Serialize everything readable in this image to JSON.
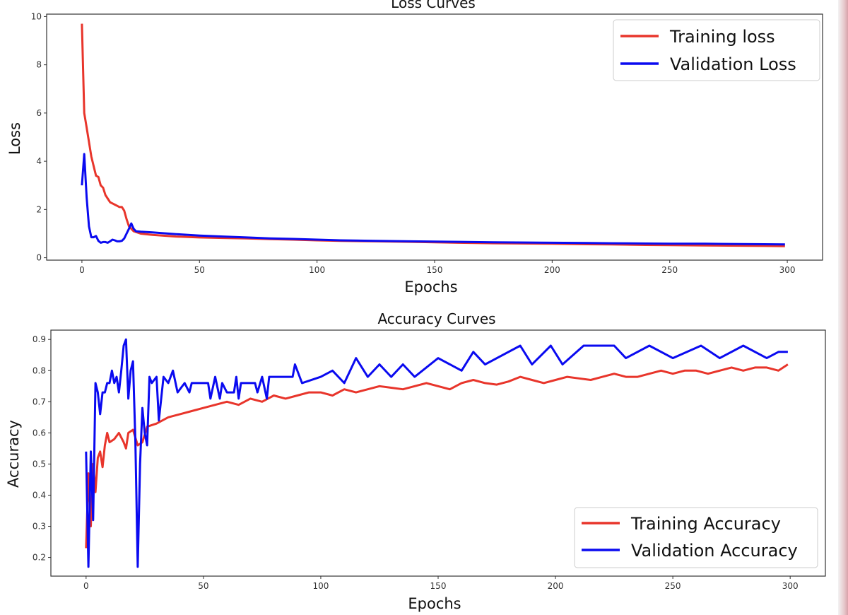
{
  "chart_data": [
    {
      "type": "line",
      "title": "Loss Curves",
      "xlabel": "Epochs",
      "ylabel": "Loss",
      "xlim": [
        -15,
        315
      ],
      "ylim": [
        -0.1,
        10.1
      ],
      "xticks": [
        0,
        50,
        100,
        150,
        200,
        250,
        300
      ],
      "yticks": [
        0,
        2,
        4,
        6,
        8,
        10
      ],
      "legend_position": "top-right",
      "colors": {
        "Training loss": "#e8352b",
        "Validation Loss": "#0a0af0"
      },
      "series": [
        {
          "name": "Training loss",
          "x": [
            0,
            1,
            2,
            3,
            4,
            5,
            6,
            7,
            8,
            9,
            10,
            11,
            12,
            13,
            14,
            15,
            16,
            17,
            18,
            19,
            20,
            22,
            25,
            30,
            40,
            50,
            60,
            70,
            80,
            90,
            100,
            110,
            125,
            140,
            150,
            160,
            175,
            190,
            200,
            215,
            225,
            240,
            250,
            265,
            275,
            290,
            299
          ],
          "y": [
            9.7,
            6.0,
            5.4,
            4.8,
            4.2,
            3.8,
            3.4,
            3.35,
            3.0,
            2.9,
            2.6,
            2.45,
            2.3,
            2.25,
            2.2,
            2.15,
            2.1,
            2.1,
            1.95,
            1.6,
            1.3,
            1.1,
            1.0,
            0.95,
            0.88,
            0.84,
            0.82,
            0.8,
            0.77,
            0.75,
            0.72,
            0.7,
            0.68,
            0.66,
            0.64,
            0.62,
            0.6,
            0.59,
            0.58,
            0.56,
            0.55,
            0.53,
            0.52,
            0.51,
            0.5,
            0.49,
            0.48
          ]
        },
        {
          "name": "Validation Loss",
          "x": [
            0,
            1,
            2,
            3,
            4,
            5,
            6,
            7,
            8,
            9,
            10,
            11,
            12,
            13,
            14,
            15,
            16,
            17,
            18,
            19,
            20,
            21,
            22,
            23,
            25,
            30,
            40,
            50,
            60,
            70,
            80,
            90,
            100,
            110,
            125,
            140,
            150,
            160,
            175,
            190,
            200,
            215,
            225,
            240,
            250,
            265,
            275,
            290,
            299
          ],
          "y": [
            3.0,
            4.3,
            2.5,
            1.3,
            0.85,
            0.85,
            0.9,
            0.7,
            0.62,
            0.65,
            0.65,
            0.62,
            0.68,
            0.75,
            0.72,
            0.68,
            0.68,
            0.7,
            0.8,
            1.0,
            1.2,
            1.42,
            1.2,
            1.1,
            1.08,
            1.05,
            0.98,
            0.92,
            0.88,
            0.84,
            0.8,
            0.78,
            0.75,
            0.72,
            0.7,
            0.68,
            0.67,
            0.66,
            0.64,
            0.63,
            0.62,
            0.61,
            0.6,
            0.59,
            0.58,
            0.58,
            0.57,
            0.56,
            0.55
          ]
        }
      ]
    },
    {
      "type": "line",
      "title": "Accuracy Curves",
      "xlabel": "Epochs",
      "ylabel": "Accuracy",
      "xlim": [
        -15,
        315
      ],
      "ylim": [
        0.14,
        0.93
      ],
      "xticks": [
        0,
        50,
        100,
        150,
        200,
        250,
        300
      ],
      "yticks": [
        0.2,
        0.3,
        0.4,
        0.5,
        0.6,
        0.7,
        0.8,
        0.9
      ],
      "legend_position": "lower-right",
      "colors": {
        "Training Accuracy": "#e8352b",
        "Validation Accuracy": "#0a0af0"
      },
      "series": [
        {
          "name": "Training Accuracy",
          "x": [
            0,
            1,
            2,
            3,
            4,
            5,
            6,
            7,
            8,
            9,
            10,
            12,
            14,
            16,
            17,
            18,
            20,
            22,
            24,
            26,
            30,
            35,
            40,
            45,
            50,
            55,
            60,
            65,
            70,
            75,
            80,
            85,
            90,
            95,
            100,
            105,
            110,
            115,
            120,
            125,
            130,
            135,
            140,
            145,
            150,
            155,
            160,
            165,
            170,
            175,
            180,
            185,
            190,
            195,
            200,
            205,
            210,
            215,
            220,
            225,
            230,
            235,
            240,
            245,
            250,
            255,
            260,
            265,
            270,
            275,
            280,
            285,
            290,
            295,
            299
          ],
          "y": [
            0.23,
            0.47,
            0.3,
            0.5,
            0.41,
            0.52,
            0.54,
            0.49,
            0.56,
            0.6,
            0.57,
            0.58,
            0.6,
            0.57,
            0.55,
            0.6,
            0.61,
            0.56,
            0.57,
            0.62,
            0.63,
            0.65,
            0.66,
            0.67,
            0.68,
            0.69,
            0.7,
            0.69,
            0.71,
            0.7,
            0.72,
            0.71,
            0.72,
            0.73,
            0.73,
            0.72,
            0.74,
            0.73,
            0.74,
            0.75,
            0.745,
            0.74,
            0.75,
            0.76,
            0.75,
            0.74,
            0.76,
            0.77,
            0.76,
            0.755,
            0.765,
            0.78,
            0.77,
            0.76,
            0.77,
            0.78,
            0.775,
            0.77,
            0.78,
            0.79,
            0.78,
            0.78,
            0.79,
            0.8,
            0.79,
            0.8,
            0.8,
            0.79,
            0.8,
            0.81,
            0.8,
            0.81,
            0.81,
            0.8,
            0.82
          ]
        },
        {
          "name": "Validation Accuracy",
          "x": [
            0,
            1,
            2,
            3,
            4,
            5,
            6,
            7,
            8,
            9,
            10,
            11,
            12,
            13,
            14,
            15,
            16,
            17,
            18,
            19,
            20,
            21,
            22,
            23,
            24,
            25,
            26,
            27,
            28,
            30,
            31,
            33,
            35,
            37,
            39,
            42,
            44,
            45,
            52,
            53,
            55,
            57,
            58,
            60,
            63,
            64,
            65,
            66,
            72,
            73,
            75,
            77,
            78,
            88,
            89,
            92,
            100,
            105,
            110,
            115,
            120,
            125,
            130,
            135,
            140,
            150,
            160,
            165,
            170,
            185,
            190,
            198,
            203,
            212,
            225,
            230,
            240,
            250,
            262,
            270,
            280,
            290,
            295,
            299
          ],
          "y": [
            0.54,
            0.17,
            0.54,
            0.32,
            0.76,
            0.73,
            0.66,
            0.73,
            0.73,
            0.76,
            0.76,
            0.8,
            0.76,
            0.78,
            0.73,
            0.8,
            0.88,
            0.9,
            0.71,
            0.8,
            0.83,
            0.57,
            0.17,
            0.5,
            0.68,
            0.6,
            0.56,
            0.78,
            0.76,
            0.78,
            0.64,
            0.78,
            0.76,
            0.8,
            0.73,
            0.76,
            0.73,
            0.76,
            0.76,
            0.71,
            0.78,
            0.71,
            0.76,
            0.73,
            0.73,
            0.78,
            0.71,
            0.76,
            0.76,
            0.73,
            0.78,
            0.71,
            0.78,
            0.78,
            0.82,
            0.76,
            0.78,
            0.8,
            0.76,
            0.84,
            0.78,
            0.82,
            0.78,
            0.82,
            0.78,
            0.84,
            0.8,
            0.86,
            0.82,
            0.88,
            0.82,
            0.88,
            0.82,
            0.88,
            0.88,
            0.84,
            0.88,
            0.84,
            0.88,
            0.84,
            0.88,
            0.84,
            0.86,
            0.86
          ]
        }
      ]
    }
  ]
}
